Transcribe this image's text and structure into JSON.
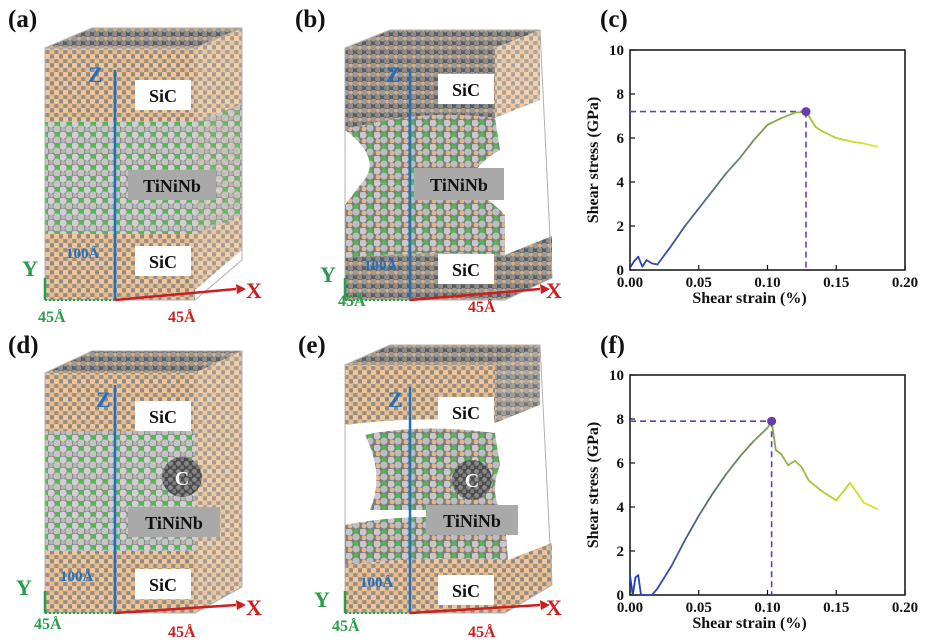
{
  "panels": {
    "a": "(a)",
    "b": "(b)",
    "c": "(c)",
    "d": "(d)",
    "e": "(e)",
    "f": "(f)"
  },
  "models": {
    "sic_label": "SiC",
    "alloy_label": "TiNiNb",
    "c_label": "C",
    "z_axis": "Z",
    "x_axis": "X",
    "y_axis": "Y",
    "height_dim": "100Å",
    "width_dim": "45Å",
    "depth_dim": "45Å"
  },
  "colors": {
    "sic_tan": "#e6b98a",
    "sic_gray": "#7a7a7a",
    "alloy_silver": "#b6b6b6",
    "alloy_green": "#4cc24c",
    "z_axis": "#1f6fc2",
    "x_axis": "#cc1f1f",
    "y_axis": "#2a9d4a",
    "guide": "#6a3da8"
  },
  "chart_data": [
    {
      "type": "line",
      "panel": "c",
      "xlabel": "Shear strain (%)",
      "ylabel": "Shear stress (GPa)",
      "xlim": [
        0,
        0.2
      ],
      "ylim": [
        0,
        10
      ],
      "xticks": [
        "0.00",
        "0.05",
        "0.10",
        "0.15",
        "0.20"
      ],
      "yticks": [
        "0",
        "2",
        "4",
        "6",
        "8",
        "10"
      ],
      "x": [
        0.0,
        0.003,
        0.006,
        0.009,
        0.012,
        0.016,
        0.02,
        0.03,
        0.04,
        0.05,
        0.06,
        0.07,
        0.08,
        0.09,
        0.1,
        0.11,
        0.12,
        0.128,
        0.135,
        0.14,
        0.15,
        0.16,
        0.17,
        0.18
      ],
      "y": [
        0.1,
        0.4,
        0.6,
        0.15,
        0.45,
        0.3,
        0.25,
        1.1,
        2.0,
        2.8,
        3.6,
        4.4,
        5.1,
        5.9,
        6.6,
        6.9,
        7.15,
        7.2,
        6.5,
        6.3,
        6.0,
        5.85,
        5.75,
        5.6
      ],
      "peak": {
        "x": 0.128,
        "y": 7.2
      },
      "grid": false
    },
    {
      "type": "line",
      "panel": "f",
      "xlabel": "Shear strain (%)",
      "ylabel": "Shear stress (GPa)",
      "xlim": [
        0,
        0.2
      ],
      "ylim": [
        0,
        10
      ],
      "xticks": [
        "0.00",
        "0.05",
        "0.10",
        "0.15",
        "0.20"
      ],
      "yticks": [
        "0",
        "2",
        "4",
        "6",
        "8",
        "10"
      ],
      "x": [
        0.0,
        0.002,
        0.004,
        0.006,
        0.008,
        0.012,
        0.016,
        0.02,
        0.03,
        0.04,
        0.05,
        0.06,
        0.07,
        0.08,
        0.09,
        0.1,
        0.103,
        0.106,
        0.11,
        0.115,
        0.12,
        0.125,
        0.13,
        0.14,
        0.15,
        0.16,
        0.17,
        0.18
      ],
      "y": [
        0.9,
        0.0,
        0.8,
        0.9,
        0.0,
        0.0,
        0.0,
        0.3,
        1.3,
        2.5,
        3.6,
        4.6,
        5.5,
        6.3,
        7.0,
        7.6,
        7.9,
        6.6,
        6.4,
        5.9,
        6.1,
        5.8,
        5.2,
        4.7,
        4.3,
        5.1,
        4.2,
        3.9
      ],
      "peak": {
        "x": 0.103,
        "y": 7.9
      },
      "grid": false
    }
  ]
}
